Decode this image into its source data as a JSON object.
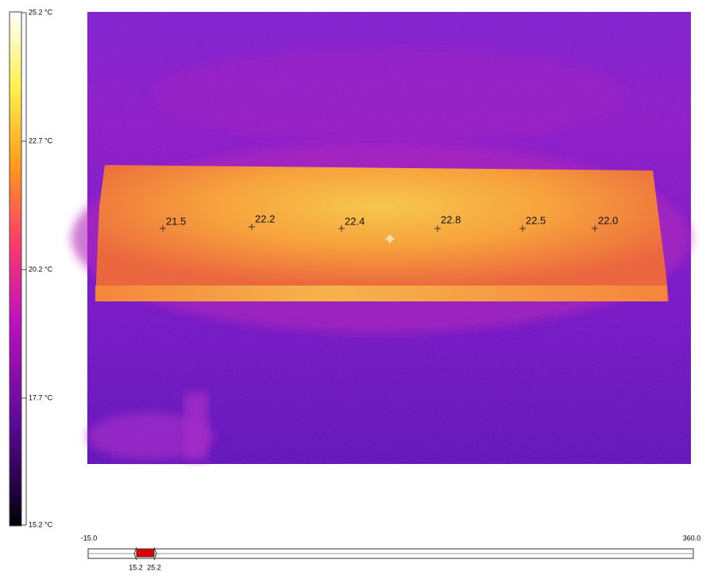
{
  "scale": {
    "labels": [
      "25.2 °C",
      "22.7 °C",
      "20.2 °C",
      "17.7 °C",
      "15.2 °C"
    ]
  },
  "spots": [
    "21.5",
    "22.2",
    "22.4",
    "22.8",
    "22.5",
    "22.0"
  ],
  "range_slider": {
    "min": "-15.0",
    "max": "360.0",
    "low": "15.2",
    "high": "25.2"
  }
}
